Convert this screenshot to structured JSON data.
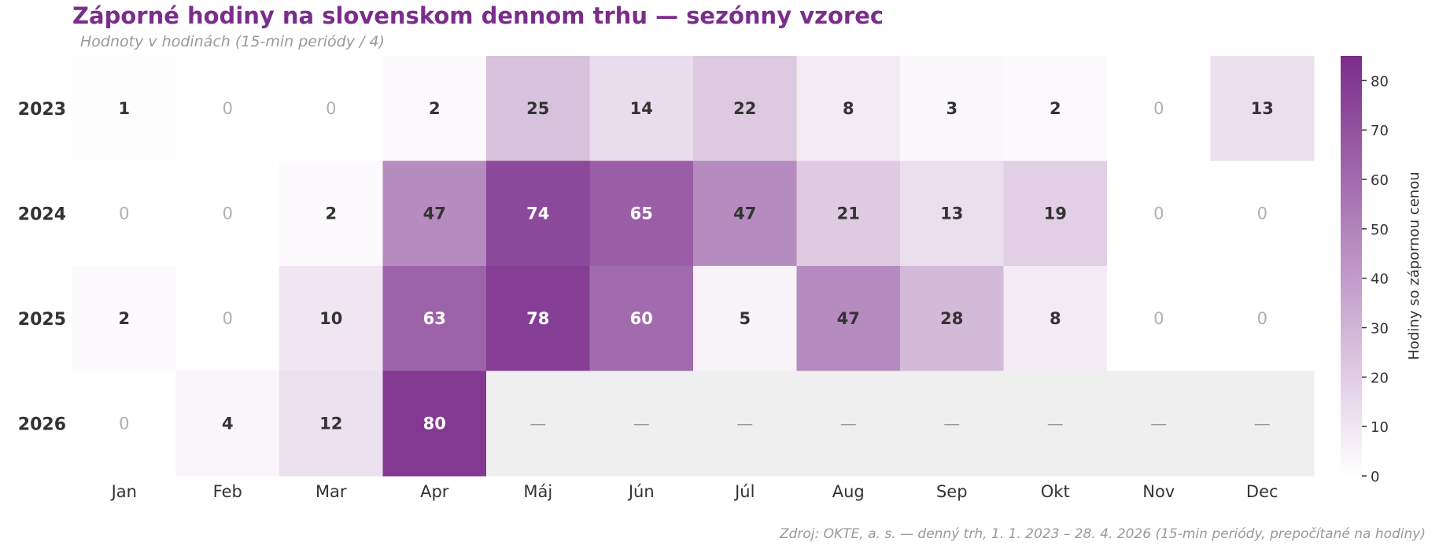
{
  "chart_data": {
    "type": "heatmap",
    "title": "Záporné hodiny na slovenskom dennom trhu — sezónny vzorec",
    "subtitle": "Hodnoty v hodinách (15-min periódy / 4)",
    "source": "Zdroj: OKTE, a. s. — denný trh, 1. 1. 2023 – 28. 4. 2026 (15-min periódy, prepočítané na hodiny)",
    "x_categories": [
      "Jan",
      "Feb",
      "Mar",
      "Apr",
      "Máj",
      "Jún",
      "Júl",
      "Aug",
      "Sep",
      "Okt",
      "Nov",
      "Dec"
    ],
    "y_categories": [
      "2023",
      "2024",
      "2025",
      "2026"
    ],
    "values": [
      [
        1,
        0,
        0,
        2,
        25,
        14,
        22,
        8,
        3,
        2,
        0,
        13
      ],
      [
        0,
        0,
        2,
        47,
        74,
        65,
        47,
        21,
        13,
        19,
        0,
        0
      ],
      [
        2,
        0,
        10,
        63,
        78,
        60,
        5,
        47,
        28,
        8,
        0,
        0
      ],
      [
        0,
        4,
        12,
        80,
        null,
        null,
        null,
        null,
        null,
        null,
        null,
        null
      ]
    ],
    "missing_label": "—",
    "colorbar": {
      "label": "Hodiny so zápornou cenou",
      "range": [
        0,
        85
      ],
      "ticks": [
        0,
        10,
        20,
        30,
        40,
        50,
        60,
        70,
        80
      ]
    },
    "colors": {
      "low": "#ffffff",
      "high": "#7b2d8b",
      "missing": "#efefef",
      "zero_text": "#b0b0b0",
      "dark_text": "#333333",
      "light_text": "#ffffff"
    }
  }
}
